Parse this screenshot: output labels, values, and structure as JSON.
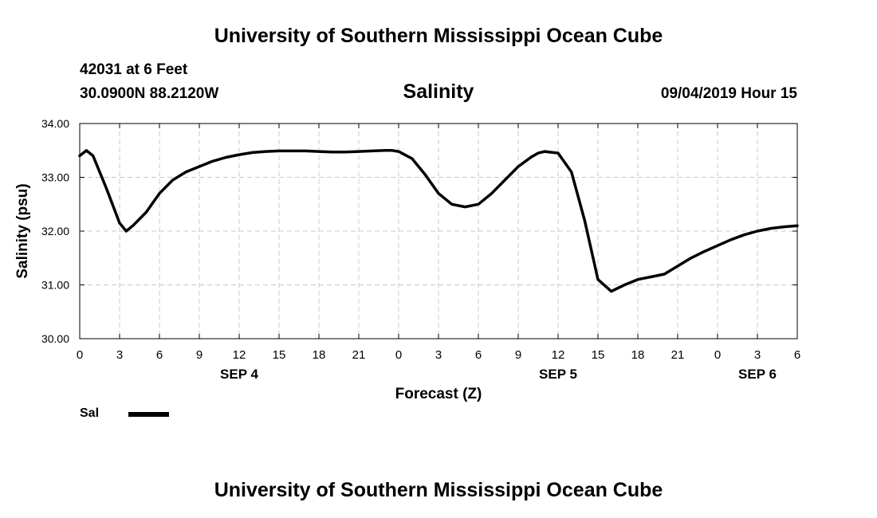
{
  "header": {
    "title_top": "University of Southern Mississippi Ocean Cube",
    "title_bottom": "University of Southern Mississippi Ocean Cube",
    "station": "42031 at 6 Feet",
    "coords": "30.0900N 88.2120W",
    "datetime": "09/04/2019 Hour 15"
  },
  "chart_data": {
    "type": "line",
    "title": "Salinity",
    "xlabel": "Forecast (Z)",
    "ylabel": "Salinity (psu)",
    "ylim": [
      30.0,
      34.0
    ],
    "xlim": [
      0,
      54
    ],
    "x_unit": "hours after 09/04/2019 00Z",
    "grid": true,
    "y_ticks": [
      "30.00",
      "31.00",
      "32.00",
      "33.00",
      "34.00"
    ],
    "x_ticks": [
      "0",
      "3",
      "6",
      "9",
      "12",
      "15",
      "18",
      "21",
      "0",
      "3",
      "6",
      "9",
      "12",
      "15",
      "18",
      "21",
      "0",
      "3",
      "6"
    ],
    "date_labels": [
      {
        "label": "SEP 4",
        "x": 12
      },
      {
        "label": "SEP 5",
        "x": 36
      },
      {
        "label": "SEP 6",
        "x": 51
      }
    ],
    "legend": {
      "position": "bottom-left"
    },
    "series": [
      {
        "name": "Sal",
        "x": [
          0,
          0.5,
          1,
          2,
          3,
          3.5,
          4,
          5,
          6,
          7,
          8,
          9,
          10,
          11,
          12,
          13,
          14,
          15,
          16,
          17,
          18,
          19,
          20,
          21,
          22,
          23,
          23.5,
          24,
          25,
          26,
          27,
          28,
          29,
          30,
          31,
          32,
          33,
          34,
          34.5,
          35,
          36,
          37,
          38,
          39,
          40,
          41,
          42,
          43,
          44,
          45,
          46,
          47,
          48,
          49,
          50,
          51,
          52,
          53,
          54
        ],
        "y": [
          33.4,
          33.5,
          33.4,
          32.8,
          32.15,
          32.0,
          32.1,
          32.35,
          32.7,
          32.95,
          33.1,
          33.2,
          33.3,
          33.37,
          33.42,
          33.46,
          33.48,
          33.49,
          33.49,
          33.49,
          33.48,
          33.47,
          33.47,
          33.48,
          33.49,
          33.5,
          33.5,
          33.48,
          33.35,
          33.05,
          32.7,
          32.5,
          32.45,
          32.5,
          32.7,
          32.95,
          33.2,
          33.38,
          33.45,
          33.48,
          33.45,
          33.1,
          32.2,
          31.1,
          30.88,
          31.0,
          31.1,
          31.15,
          31.2,
          31.35,
          31.5,
          31.62,
          31.73,
          31.84,
          31.93,
          32.0,
          32.05,
          32.08,
          32.1
        ]
      }
    ]
  }
}
